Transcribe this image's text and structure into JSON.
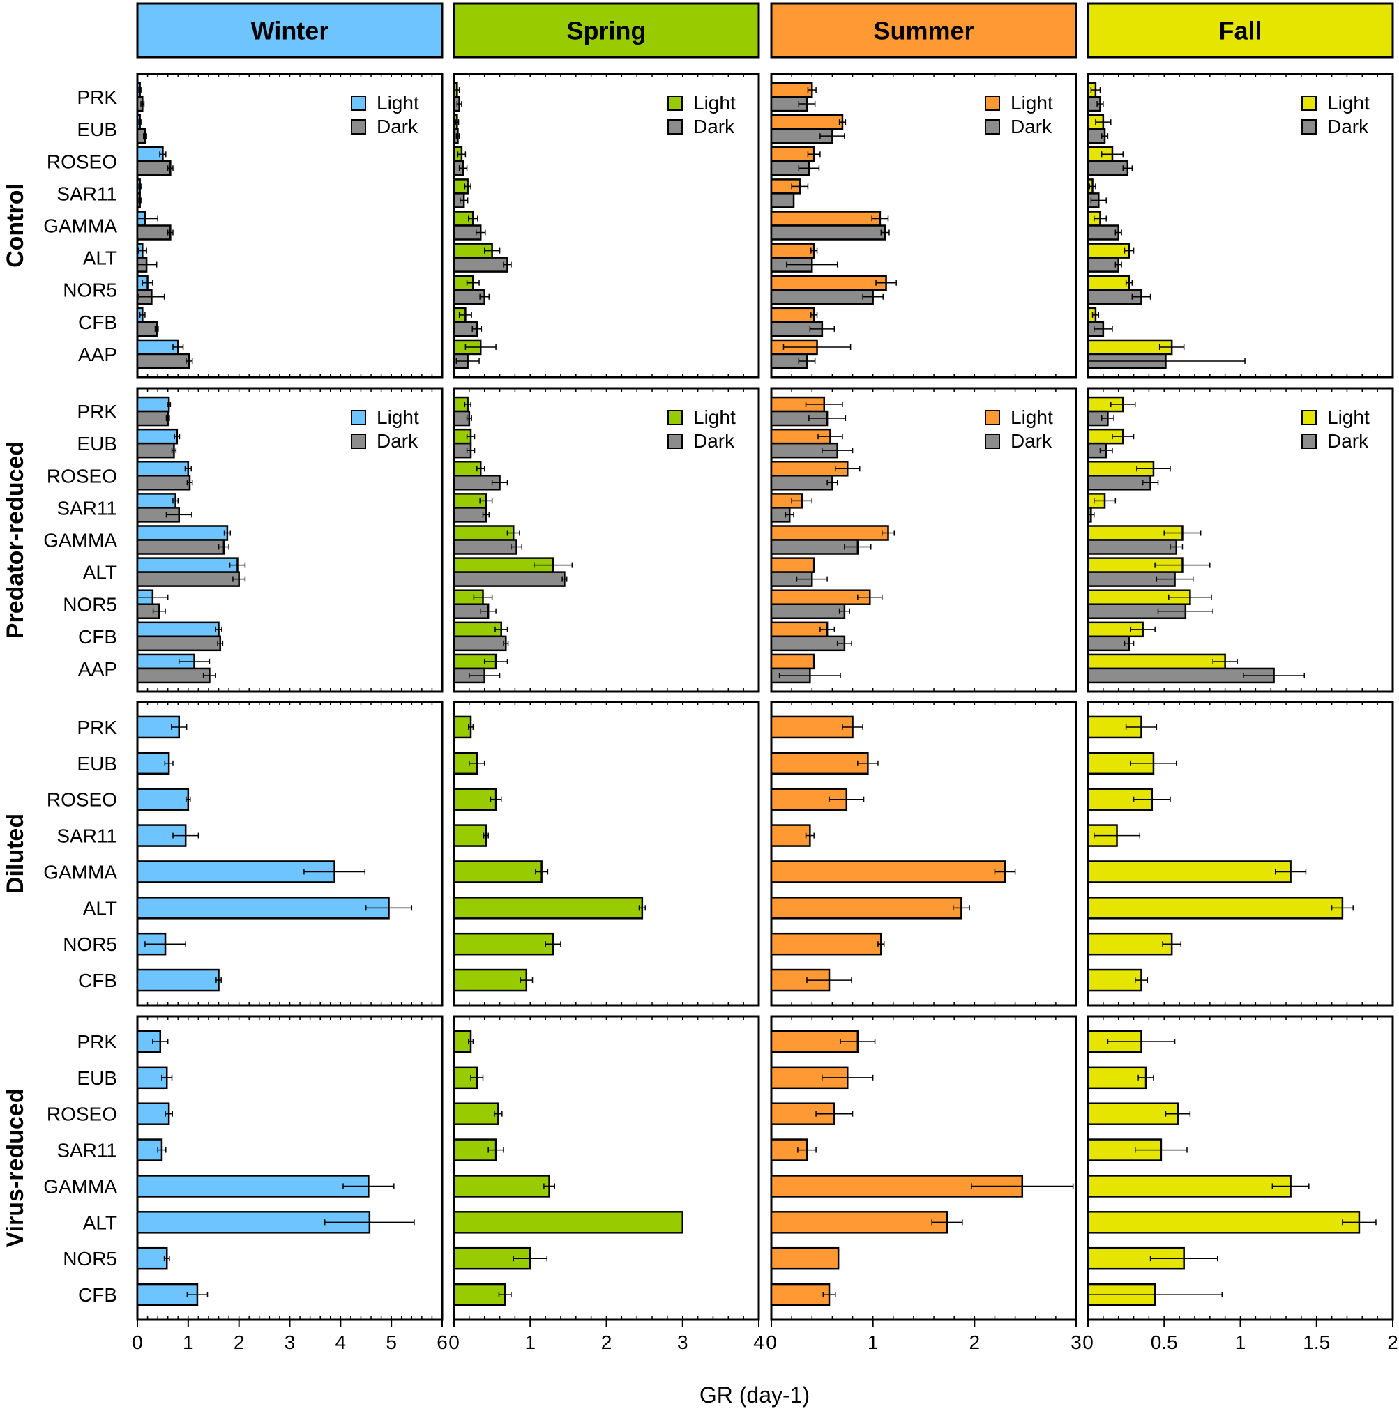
{
  "chart_data": {
    "type": "bar",
    "orientation": "horizontal",
    "xlabel": "GR (day-1)",
    "season_headers": [
      {
        "label": "Winter",
        "color": "#6EC4FF"
      },
      {
        "label": "Spring",
        "color": "#99CC00"
      },
      {
        "label": "Summer",
        "color": "#FF9933"
      },
      {
        "label": "Fall",
        "color": "#E5E500"
      }
    ],
    "treatments": [
      "Control",
      "Predator-reduced",
      "Diluted",
      "Virus-reduced"
    ],
    "legend": {
      "light": "Light",
      "dark": "Dark",
      "placement": "top-right"
    },
    "dark_color": "#8C8C8C",
    "categories_full": [
      "PRK",
      "EUB",
      "ROSEO",
      "SAR11",
      "GAMMA",
      "ALT",
      "NOR5",
      "CFB",
      "AAP"
    ],
    "categories_short": [
      "PRK",
      "EUB",
      "ROSEO",
      "SAR11",
      "GAMMA",
      "ALT",
      "NOR5",
      "CFB"
    ],
    "xaxes": [
      {
        "season": "Winter",
        "xlim": [
          0,
          6
        ],
        "ticks": [
          0,
          1,
          2,
          3,
          4,
          5,
          6
        ]
      },
      {
        "season": "Spring",
        "xlim": [
          0,
          4
        ],
        "ticks": [
          0,
          1,
          2,
          3,
          4
        ]
      },
      {
        "season": "Summer",
        "xlim": [
          0,
          3
        ],
        "ticks": [
          0,
          1,
          2,
          3
        ]
      },
      {
        "season": "Fall",
        "xlim": [
          0,
          2
        ],
        "ticks": [
          0,
          0.5,
          1,
          1.5,
          2
        ]
      }
    ],
    "Control": {
      "Winter": {
        "light": [
          0.05,
          0.05,
          0.5,
          0.05,
          0.15,
          0.1,
          0.2,
          0.1,
          0.8
        ],
        "light_err": [
          0.02,
          0.02,
          0.06,
          0.02,
          0.25,
          0.08,
          0.1,
          0.05,
          0.1
        ],
        "dark": [
          0.1,
          0.15,
          0.65,
          0.05,
          0.65,
          0.18,
          0.28,
          0.38,
          1.02
        ],
        "dark_err": [
          0.03,
          0.03,
          0.05,
          0.02,
          0.05,
          0.2,
          0.25,
          0.03,
          0.06
        ]
      },
      "Spring": {
        "light": [
          0.04,
          0.04,
          0.1,
          0.18,
          0.25,
          0.5,
          0.25,
          0.15,
          0.35
        ],
        "light_err": [
          0.03,
          0.02,
          0.05,
          0.04,
          0.06,
          0.1,
          0.08,
          0.08,
          0.2
        ],
        "dark": [
          0.07,
          0.05,
          0.12,
          0.13,
          0.35,
          0.7,
          0.4,
          0.3,
          0.18
        ],
        "dark_err": [
          0.03,
          0.02,
          0.05,
          0.05,
          0.06,
          0.05,
          0.06,
          0.06,
          0.15
        ]
      },
      "Summer": {
        "light": [
          0.4,
          0.7,
          0.42,
          0.28,
          1.07,
          0.42,
          1.13,
          0.42,
          0.45
        ],
        "light_err": [
          0.04,
          0.03,
          0.06,
          0.08,
          0.08,
          0.03,
          0.1,
          0.03,
          0.33
        ],
        "dark": [
          0.35,
          0.6,
          0.37,
          0.22,
          1.12,
          0.4,
          1.0,
          0.5,
          0.35
        ],
        "dark_err": [
          0.08,
          0.12,
          0.1,
          0.0,
          0.04,
          0.25,
          0.1,
          0.12,
          0.08
        ]
      },
      "Fall": {
        "light": [
          0.05,
          0.1,
          0.16,
          0.03,
          0.08,
          0.27,
          0.27,
          0.05,
          0.55
        ],
        "light_err": [
          0.03,
          0.05,
          0.07,
          0.02,
          0.04,
          0.03,
          0.02,
          0.02,
          0.08
        ],
        "dark": [
          0.08,
          0.11,
          0.26,
          0.07,
          0.2,
          0.2,
          0.35,
          0.1,
          0.51
        ],
        "dark_err": [
          0.02,
          0.02,
          0.03,
          0.05,
          0.02,
          0.02,
          0.06,
          0.06,
          0.52
        ]
      }
    },
    "Predator-reduced": {
      "Winter": {
        "light": [
          0.62,
          0.78,
          1.0,
          0.75,
          1.77,
          1.97,
          0.3,
          1.6,
          1.12
        ],
        "light_err": [
          0.03,
          0.05,
          0.06,
          0.05,
          0.06,
          0.15,
          0.3,
          0.06,
          0.3
        ],
        "dark": [
          0.6,
          0.72,
          1.03,
          0.82,
          1.7,
          2.0,
          0.43,
          1.63,
          1.42
        ],
        "dark_err": [
          0.03,
          0.04,
          0.05,
          0.25,
          0.1,
          0.12,
          0.12,
          0.05,
          0.12
        ]
      },
      "Spring": {
        "light": [
          0.18,
          0.22,
          0.35,
          0.42,
          0.78,
          1.3,
          0.38,
          0.62,
          0.55
        ],
        "light_err": [
          0.04,
          0.05,
          0.05,
          0.08,
          0.08,
          0.25,
          0.12,
          0.08,
          0.15
        ],
        "dark": [
          0.2,
          0.22,
          0.6,
          0.42,
          0.82,
          1.45,
          0.45,
          0.68,
          0.4
        ],
        "dark_err": [
          0.03,
          0.05,
          0.1,
          0.04,
          0.07,
          0.03,
          0.1,
          0.03,
          0.2
        ]
      },
      "Summer": {
        "light": [
          0.52,
          0.58,
          0.75,
          0.3,
          1.15,
          0.42,
          0.97,
          0.55,
          0.42
        ],
        "light_err": [
          0.18,
          0.12,
          0.12,
          0.1,
          0.06,
          0.0,
          0.12,
          0.07,
          0.0
        ],
        "dark": [
          0.55,
          0.65,
          0.6,
          0.18,
          0.85,
          0.4,
          0.72,
          0.72,
          0.38
        ],
        "dark_err": [
          0.18,
          0.15,
          0.05,
          0.04,
          0.13,
          0.15,
          0.05,
          0.07,
          0.3
        ]
      },
      "Fall": {
        "light": [
          0.23,
          0.23,
          0.43,
          0.11,
          0.62,
          0.62,
          0.67,
          0.36,
          0.9
        ],
        "light_err": [
          0.08,
          0.07,
          0.11,
          0.07,
          0.12,
          0.18,
          0.14,
          0.08,
          0.08
        ],
        "dark": [
          0.13,
          0.12,
          0.41,
          0.02,
          0.58,
          0.57,
          0.64,
          0.27,
          1.22
        ],
        "dark_err": [
          0.04,
          0.04,
          0.05,
          0.02,
          0.04,
          0.12,
          0.18,
          0.03,
          0.2
        ]
      }
    },
    "Diluted": {
      "Winter": {
        "light": [
          0.82,
          0.62,
          1.0,
          0.95,
          3.88,
          4.95,
          0.55,
          1.6
        ],
        "light_err": [
          0.15,
          0.08,
          0.04,
          0.25,
          0.6,
          0.45,
          0.4,
          0.05
        ]
      },
      "Spring": {
        "light": [
          0.22,
          0.3,
          0.55,
          0.42,
          1.15,
          2.47,
          1.3,
          0.95
        ],
        "light_err": [
          0.03,
          0.1,
          0.07,
          0.03,
          0.08,
          0.04,
          0.1,
          0.08
        ]
      },
      "Summer": {
        "light": [
          0.8,
          0.95,
          0.74,
          0.38,
          2.3,
          1.87,
          1.08,
          0.57
        ],
        "light_err": [
          0.1,
          0.1,
          0.17,
          0.04,
          0.1,
          0.08,
          0.03,
          0.22
        ]
      },
      "Fall": {
        "light": [
          0.35,
          0.43,
          0.42,
          0.19,
          1.33,
          1.67,
          0.55,
          0.35
        ],
        "light_err": [
          0.1,
          0.15,
          0.12,
          0.15,
          0.1,
          0.07,
          0.06,
          0.04
        ]
      }
    },
    "Virus-reduced": {
      "Winter": {
        "light": [
          0.45,
          0.58,
          0.62,
          0.48,
          4.55,
          4.57,
          0.58,
          1.18
        ],
        "light_err": [
          0.15,
          0.1,
          0.07,
          0.08,
          0.5,
          0.88,
          0.05,
          0.2
        ]
      },
      "Spring": {
        "light": [
          0.22,
          0.3,
          0.58,
          0.55,
          1.25,
          3.0,
          1.0,
          0.67
        ],
        "light_err": [
          0.03,
          0.08,
          0.05,
          0.1,
          0.07,
          0.0,
          0.22,
          0.08
        ]
      },
      "Summer": {
        "light": [
          0.85,
          0.75,
          0.62,
          0.35,
          2.47,
          1.73,
          0.66,
          0.57
        ],
        "light_err": [
          0.17,
          0.25,
          0.18,
          0.09,
          0.5,
          0.15,
          0.0,
          0.06
        ]
      },
      "Fall": {
        "light": [
          0.35,
          0.38,
          0.59,
          0.48,
          1.33,
          1.78,
          0.63,
          0.44
        ],
        "light_err": [
          0.22,
          0.05,
          0.08,
          0.17,
          0.12,
          0.11,
          0.22,
          0.44
        ]
      }
    }
  }
}
